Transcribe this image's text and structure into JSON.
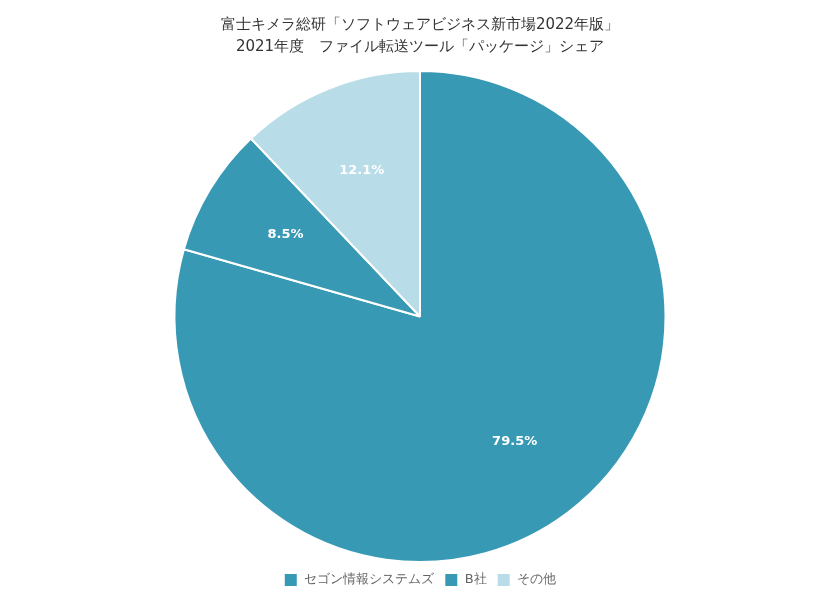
{
  "chart_data": {
    "type": "pie",
    "title": "富士キメラ総研「ソフトウェアビジネス新市場2022年版」",
    "subtitle": "2021年度　ファイル転送ツール「パッケージ」シェア",
    "categories": [
      "セゴン情報システムズ",
      "B社",
      "その他"
    ],
    "values": [
      79.5,
      8.5,
      12.1
    ],
    "value_labels": [
      "79.5%",
      "8.5%",
      "12.1%"
    ],
    "colors": [
      "#3899b5",
      "#3899b5",
      "#b8dce8"
    ],
    "data_labels": true,
    "legend": "bottom"
  }
}
